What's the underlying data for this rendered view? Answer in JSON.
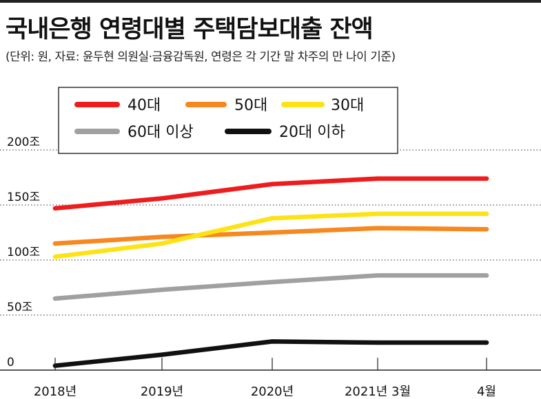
{
  "header": {
    "title": "국내은행 연령대별 주택담보대출 잔액",
    "subtitle": "(단위: 원, 자료: 윤두현 의원실·금융감독원, 연령은 각 기간 말 차주의 만 나이 기준)"
  },
  "colors": {
    "40대": "#ee1c1c",
    "50대": "#f7871f",
    "30대": "#fde316",
    "60대 이상": "#a0a0a0",
    "20대 이하": "#111111",
    "grid": "#555555",
    "axis": "#222222"
  },
  "chart_data": {
    "type": "line",
    "x": [
      "2018년",
      "2019년",
      "2020년",
      "2021년 3월",
      "4월"
    ],
    "ylim": [
      0,
      200
    ],
    "yticks": [
      0,
      50,
      100,
      150,
      200
    ],
    "ytick_labels": [
      "0",
      "50조",
      "100조",
      "150조",
      "200조"
    ],
    "grid": "horizontal dotted",
    "legend_position": "top-left",
    "series": [
      {
        "name": "40대",
        "values": [
          147,
          156,
          169,
          174,
          174
        ]
      },
      {
        "name": "50대",
        "values": [
          115,
          121,
          125,
          129,
          128
        ]
      },
      {
        "name": "30대",
        "values": [
          103,
          115,
          138,
          142,
          142
        ]
      },
      {
        "name": "60대 이상",
        "values": [
          65,
          73,
          80,
          86,
          86
        ]
      },
      {
        "name": "20대 이하",
        "values": [
          4,
          14,
          26,
          25,
          25
        ]
      }
    ],
    "legend_order": [
      "40대",
      "50대",
      "30대",
      "60대 이상",
      "20대 이하"
    ]
  }
}
